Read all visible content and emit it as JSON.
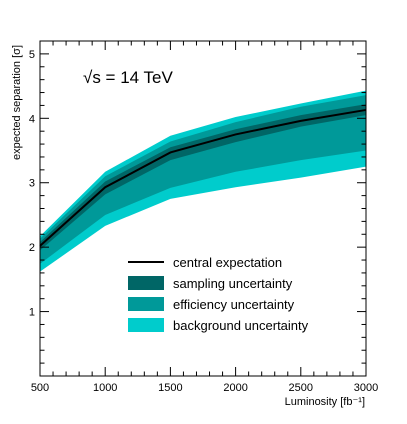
{
  "chart_data": {
    "type": "area",
    "title": "",
    "annotation": "√s = 14 TeV",
    "xlabel": "Luminosity [fb⁻¹]",
    "ylabel": "expected separation [σ]",
    "xlim": [
      500,
      3000
    ],
    "ylim": [
      0,
      5.2
    ],
    "x_ticks": [
      500,
      1000,
      1500,
      2000,
      2500,
      3000
    ],
    "x_tick_labels": [
      "500",
      "1000",
      "1500",
      "2000",
      "2500",
      "3000"
    ],
    "y_ticks": [
      1,
      2,
      3,
      4,
      5
    ],
    "y_tick_labels": [
      "1",
      "2",
      "3",
      "4",
      "5"
    ],
    "grid": false,
    "legend_position": "bottom-center",
    "x": [
      500,
      1000,
      1500,
      2000,
      2500,
      3000
    ],
    "series": [
      {
        "name": "background uncertainty",
        "kind": "band",
        "color": "#00cccc",
        "lower": [
          1.62,
          2.33,
          2.75,
          2.93,
          3.08,
          3.25
        ],
        "upper": [
          2.17,
          3.17,
          3.73,
          4.02,
          4.23,
          4.43
        ]
      },
      {
        "name": "efficiency uncertainty",
        "kind": "band",
        "color": "#009999",
        "lower": [
          1.74,
          2.5,
          2.92,
          3.17,
          3.35,
          3.5
        ],
        "upper": [
          2.13,
          3.1,
          3.64,
          3.94,
          4.18,
          4.36
        ]
      },
      {
        "name": "sampling uncertainty",
        "kind": "band",
        "color": "#006666",
        "lower": [
          1.95,
          2.82,
          3.35,
          3.63,
          3.87,
          4.05
        ],
        "upper": [
          2.08,
          3.02,
          3.55,
          3.83,
          4.05,
          4.22
        ]
      },
      {
        "name": "central expectation",
        "kind": "line",
        "color": "#000000",
        "values": [
          2.02,
          2.93,
          3.47,
          3.75,
          3.96,
          4.13
        ]
      }
    ],
    "legend": [
      {
        "label": "central expectation",
        "kind": "line",
        "color": "#000000"
      },
      {
        "label": "sampling uncertainty",
        "kind": "box",
        "color": "#006666"
      },
      {
        "label": "efficiency uncertainty",
        "kind": "box",
        "color": "#009999"
      },
      {
        "label": "background uncertainty",
        "kind": "box",
        "color": "#00cccc"
      }
    ]
  }
}
